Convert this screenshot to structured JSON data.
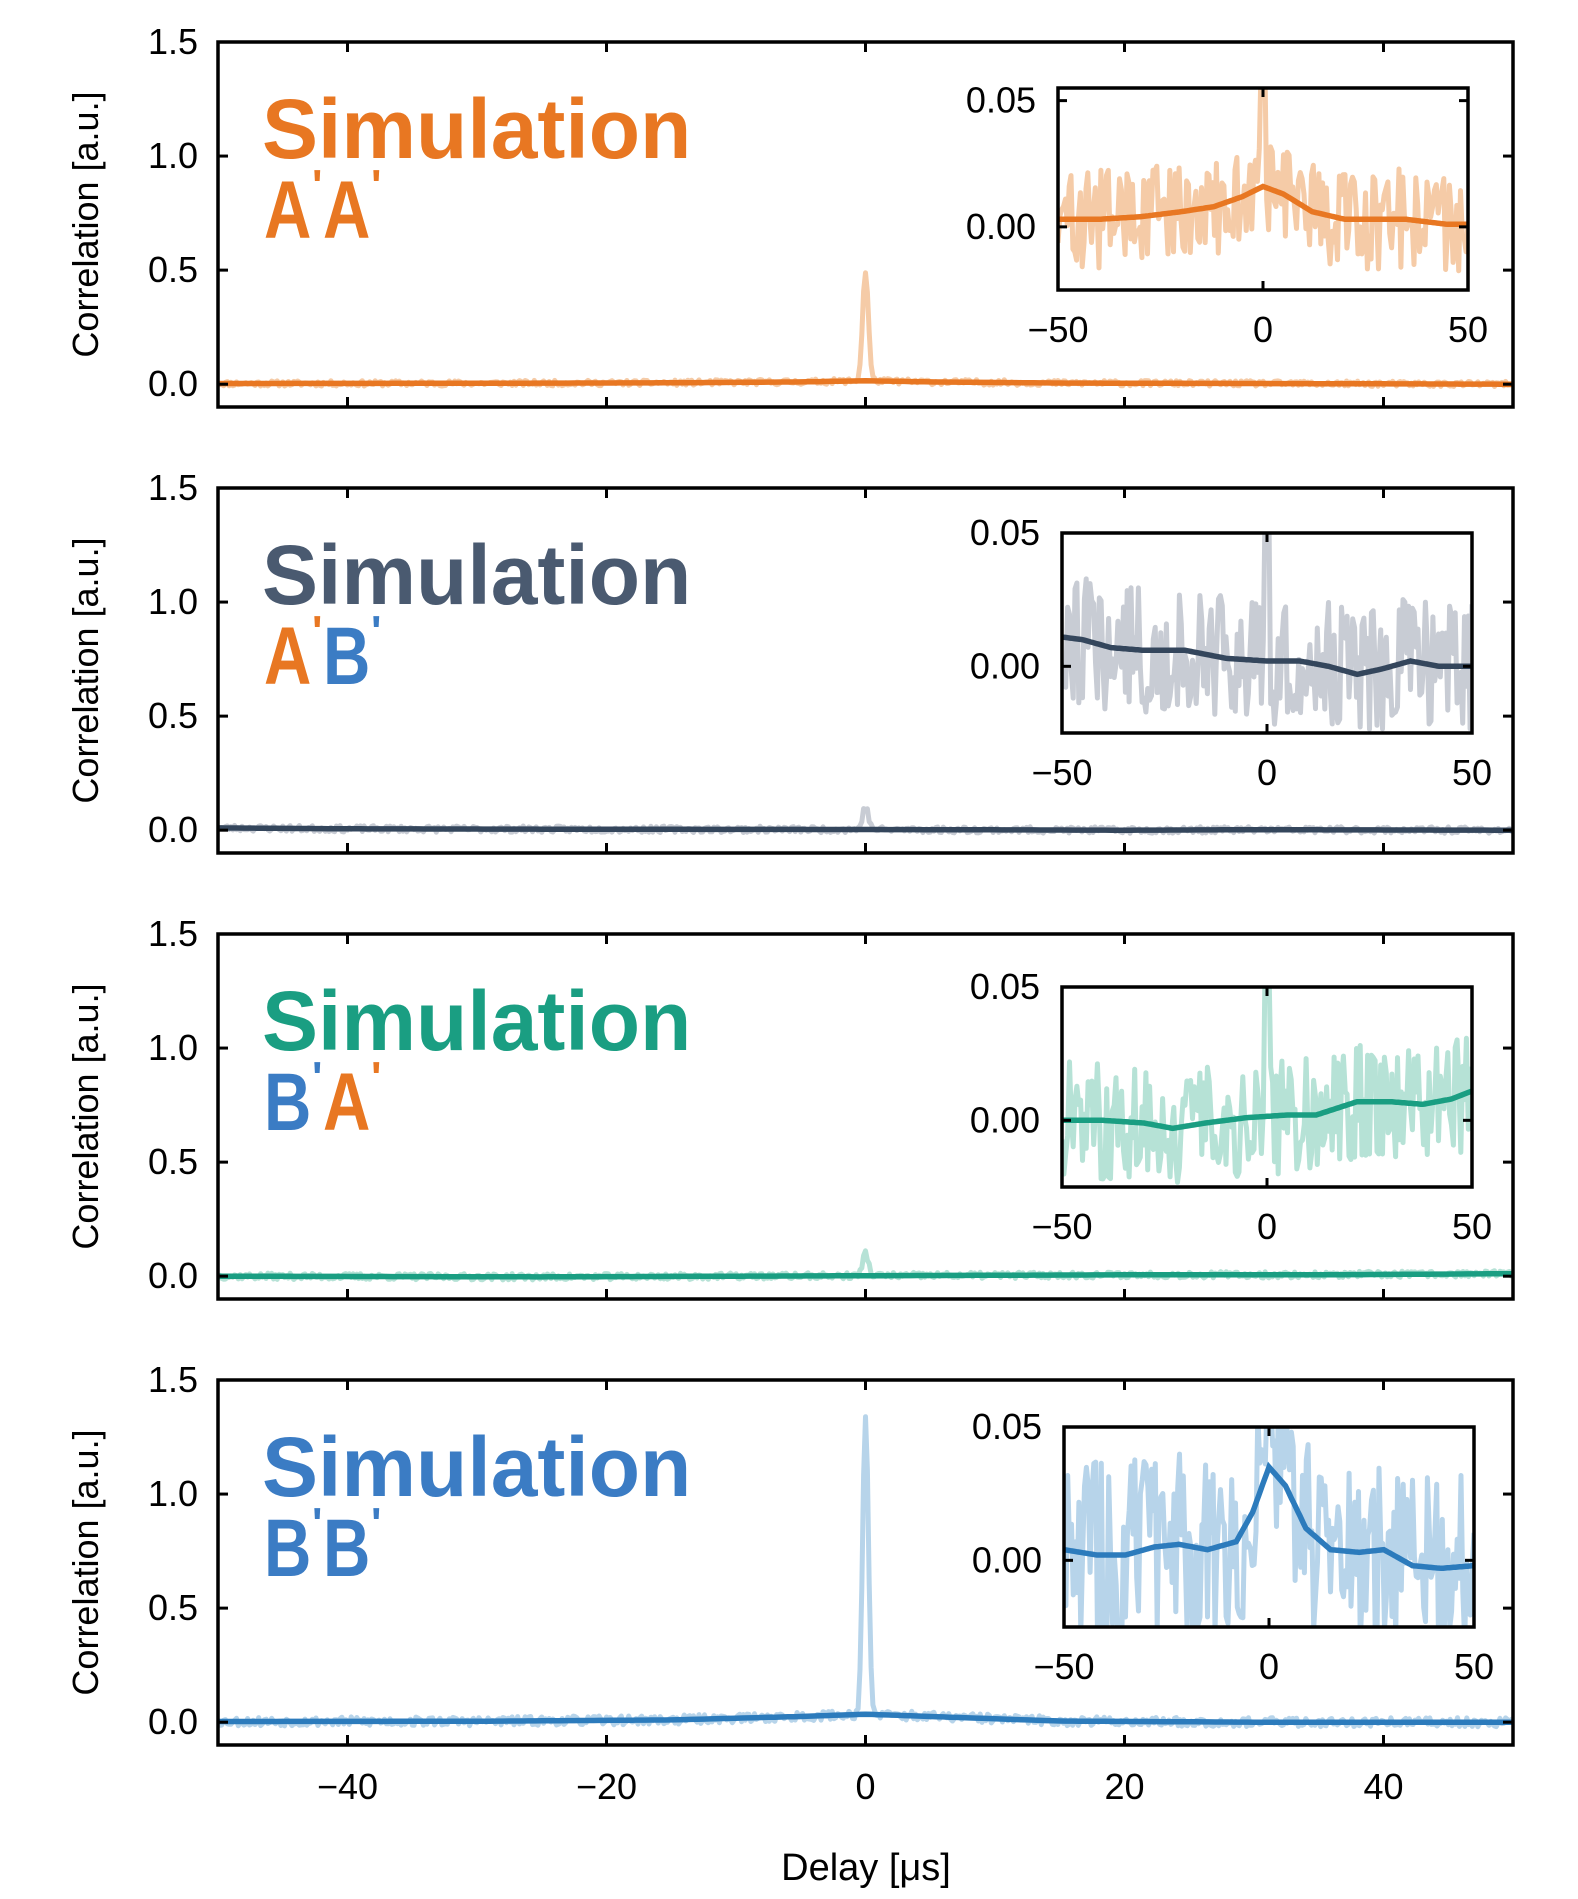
{
  "chart_data": {
    "type": "line",
    "xlabel": "Delay [μs]",
    "x_range": [
      -50,
      50
    ],
    "x_ticks": [
      "−40",
      "−20",
      "0",
      "20",
      "40"
    ],
    "x_tick_values": [
      -40,
      -20,
      0,
      20,
      40
    ],
    "panels": [
      {
        "title": "Simulation",
        "title_color": "#e87722",
        "pair": [
          {
            "letter": "A",
            "prime": "'",
            "color": "#e87722"
          },
          {
            "letter": "A",
            "prime": "'",
            "color": "#e87722"
          }
        ],
        "ylabel": "Correlation [a.u.]",
        "ylim": [
          -0.1,
          1.5
        ],
        "y_ticks": [
          "0.0",
          "0.5",
          "1.0",
          "1.5"
        ],
        "y_tick_values": [
          0.0,
          0.5,
          1.0,
          1.5
        ],
        "raw_color": "#f5cba7",
        "smooth_color": "#e87722",
        "peak": 0.48,
        "noise": 0.012,
        "seed": 11,
        "smooth": [
          [
            -50,
            0.003
          ],
          [
            -30,
            0.004
          ],
          [
            -15,
            0.006
          ],
          [
            -5,
            0.01
          ],
          [
            0,
            0.015
          ],
          [
            5,
            0.01
          ],
          [
            15,
            0.005
          ],
          [
            30,
            0.003
          ],
          [
            50,
            0.0
          ]
        ],
        "inset": {
          "ylim": [
            -0.025,
            0.055
          ],
          "x_ticks": [
            "−50",
            "0",
            "50"
          ],
          "x_tick_values": [
            -50,
            0,
            50
          ],
          "y_ticks": [
            "0.00",
            "0.05"
          ],
          "y_tick_values": [
            0.0,
            0.05
          ],
          "raw_amp": 0.02,
          "smooth": [
            [
              -50,
              0.003
            ],
            [
              -40,
              0.003
            ],
            [
              -30,
              0.004
            ],
            [
              -20,
              0.006
            ],
            [
              -12,
              0.008
            ],
            [
              -5,
              0.012
            ],
            [
              0,
              0.016
            ],
            [
              5,
              0.013
            ],
            [
              12,
              0.006
            ],
            [
              20,
              0.003
            ],
            [
              35,
              0.003
            ],
            [
              45,
              0.001
            ],
            [
              50,
              0.001
            ]
          ]
        }
      },
      {
        "title": "Simulation",
        "title_color": "#4a5a70",
        "pair": [
          {
            "letter": "A",
            "prime": "'",
            "color": "#e87722"
          },
          {
            "letter": "B",
            "prime": "'",
            "color": "#3b7cc4"
          }
        ],
        "ylabel": "Correlation [a.u.]",
        "ylim": [
          -0.1,
          1.5
        ],
        "y_ticks": [
          "0.0",
          "0.5",
          "1.0",
          "1.5"
        ],
        "y_tick_values": [
          0.0,
          0.5,
          1.0,
          1.5
        ],
        "raw_color": "#c8ccd4",
        "smooth_color": "#34465c",
        "peak": 0.1,
        "noise": 0.014,
        "seed": 23,
        "smooth": [
          [
            -50,
            0.01
          ],
          [
            -40,
            0.006
          ],
          [
            -20,
            0.004
          ],
          [
            0,
            0.003
          ],
          [
            20,
            0.0
          ],
          [
            30,
            0.002
          ],
          [
            50,
            0.0
          ]
        ],
        "inset": {
          "ylim": [
            -0.025,
            0.05
          ],
          "x_ticks": [
            "−50",
            "0",
            "50"
          ],
          "x_tick_values": [
            -50,
            0,
            50
          ],
          "y_ticks": [
            "0.00",
            "0.05"
          ],
          "y_tick_values": [
            0.0,
            0.05
          ],
          "raw_amp": 0.024,
          "smooth": [
            [
              -50,
              0.011
            ],
            [
              -45,
              0.01
            ],
            [
              -38,
              0.007
            ],
            [
              -30,
              0.006
            ],
            [
              -20,
              0.006
            ],
            [
              -10,
              0.003
            ],
            [
              0,
              0.002
            ],
            [
              8,
              0.002
            ],
            [
              15,
              0.0
            ],
            [
              22,
              -0.003
            ],
            [
              28,
              -0.001
            ],
            [
              35,
              0.002
            ],
            [
              42,
              0.0
            ],
            [
              50,
              0.0
            ]
          ]
        }
      },
      {
        "title": "Simulation",
        "title_color": "#1a9e82",
        "pair": [
          {
            "letter": "B",
            "prime": "'",
            "color": "#3b7cc4"
          },
          {
            "letter": "A",
            "prime": "'",
            "color": "#e87722"
          }
        ],
        "ylabel": "Correlation [a.u.]",
        "ylim": [
          -0.1,
          1.5
        ],
        "y_ticks": [
          "0.0",
          "0.5",
          "1.0",
          "1.5"
        ],
        "y_tick_values": [
          0.0,
          0.5,
          1.0,
          1.5
        ],
        "raw_color": "#b6e2d6",
        "smooth_color": "#1a9e82",
        "peak": 0.1,
        "noise": 0.014,
        "seed": 37,
        "smooth": [
          [
            -50,
            0.0
          ],
          [
            -25,
            -0.003
          ],
          [
            0,
            0.002
          ],
          [
            20,
            0.006
          ],
          [
            35,
            0.006
          ],
          [
            50,
            0.011
          ]
        ],
        "inset": {
          "ylim": [
            -0.025,
            0.05
          ],
          "x_ticks": [
            "−50",
            "0",
            "50"
          ],
          "x_tick_values": [
            -50,
            0,
            50
          ],
          "y_ticks": [
            "0.00",
            "0.05"
          ],
          "y_tick_values": [
            0.0,
            0.05
          ],
          "raw_amp": 0.022,
          "smooth": [
            [
              -50,
              0.0
            ],
            [
              -40,
              0.0
            ],
            [
              -30,
              -0.001
            ],
            [
              -23,
              -0.003
            ],
            [
              -15,
              -0.001
            ],
            [
              -5,
              0.001
            ],
            [
              5,
              0.002
            ],
            [
              12,
              0.002
            ],
            [
              22,
              0.007
            ],
            [
              30,
              0.007
            ],
            [
              38,
              0.006
            ],
            [
              45,
              0.008
            ],
            [
              50,
              0.011
            ]
          ]
        }
      },
      {
        "title": "Simulation",
        "title_color": "#3b7cc4",
        "pair": [
          {
            "letter": "B",
            "prime": "'",
            "color": "#3b7cc4"
          },
          {
            "letter": "B",
            "prime": "'",
            "color": "#3b7cc4"
          }
        ],
        "ylabel": "Correlation [a.u.]",
        "ylim": [
          -0.1,
          1.5
        ],
        "y_ticks": [
          "0.0",
          "0.5",
          "1.0",
          "1.5"
        ],
        "y_tick_values": [
          0.0,
          0.5,
          1.0,
          1.5
        ],
        "raw_color": "#b7d4ea",
        "smooth_color": "#2c7bbc",
        "peak": 1.3,
        "noise": 0.02,
        "seed": 53,
        "smooth": [
          [
            -50,
            0.003
          ],
          [
            -30,
            0.004
          ],
          [
            -15,
            0.01
          ],
          [
            -5,
            0.025
          ],
          [
            0,
            0.035
          ],
          [
            5,
            0.025
          ],
          [
            15,
            0.005
          ],
          [
            30,
            0.0
          ],
          [
            50,
            0.0
          ]
        ],
        "inset": {
          "ylim": [
            -0.025,
            0.05
          ],
          "x_ticks": [
            "−50",
            "0",
            "50"
          ],
          "x_tick_values": [
            -50,
            0,
            50
          ],
          "y_ticks": [
            "0.00",
            "0.05"
          ],
          "y_tick_values": [
            0.0,
            0.05
          ],
          "raw_amp": 0.035,
          "smooth": [
            [
              -50,
              0.004
            ],
            [
              -42,
              0.002
            ],
            [
              -35,
              0.002
            ],
            [
              -28,
              0.005
            ],
            [
              -22,
              0.006
            ],
            [
              -15,
              0.004
            ],
            [
              -8,
              0.007
            ],
            [
              -4,
              0.018
            ],
            [
              0,
              0.035
            ],
            [
              4,
              0.028
            ],
            [
              9,
              0.012
            ],
            [
              15,
              0.004
            ],
            [
              22,
              0.003
            ],
            [
              28,
              0.004
            ],
            [
              35,
              -0.002
            ],
            [
              42,
              -0.003
            ],
            [
              50,
              -0.002
            ]
          ]
        }
      }
    ]
  }
}
